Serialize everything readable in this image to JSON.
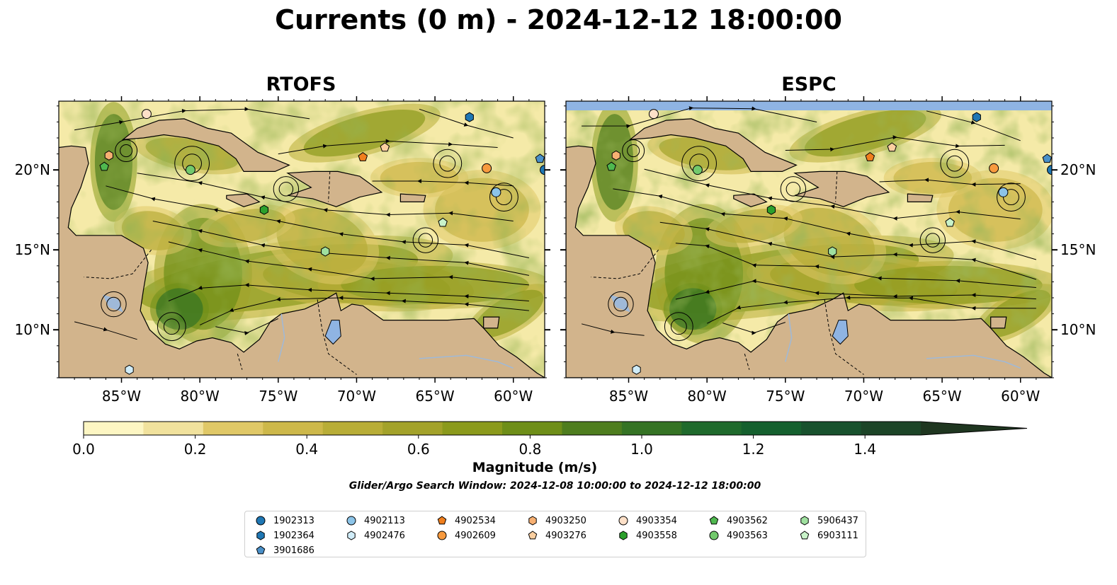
{
  "title": "Currents (0 m) - 2024-12-12 18:00:00",
  "panels": [
    {
      "title": "RTOFS"
    },
    {
      "title": "ESPC"
    }
  ],
  "axes": {
    "lon_range": [
      -89.0,
      -58.0
    ],
    "lat_range": [
      7.0,
      24.3
    ],
    "x_ticks": [
      -85,
      -80,
      -75,
      -70,
      -65,
      -60
    ],
    "x_tick_labels": [
      "85°W",
      "80°W",
      "75°W",
      "70°W",
      "65°W",
      "60°W"
    ],
    "y_ticks": [
      10,
      15,
      20
    ],
    "y_tick_labels": [
      "10°N",
      "15°N",
      "20°N"
    ]
  },
  "colorbar": {
    "label": "Magnitude (m/s)",
    "range": [
      0.0,
      1.5
    ],
    "extend": "max",
    "ticks": [
      0.0,
      0.2,
      0.4,
      0.6,
      0.8,
      1.0,
      1.2,
      1.4
    ],
    "tick_labels": [
      "0.0",
      "0.2",
      "0.4",
      "0.6",
      "0.8",
      "1.0",
      "1.2",
      "1.4"
    ],
    "colors": [
      "#fdf6c3",
      "#f1e29d",
      "#e0c867",
      "#cdb84a",
      "#b8ad37",
      "#a3a22a",
      "#8b9a1c",
      "#6e8e18",
      "#4e7d1e",
      "#357324",
      "#1f6a2c",
      "#15602e",
      "#18512d",
      "#1c4427",
      "#1f3620"
    ]
  },
  "search_window": "Glider/Argo Search Window: 2024-12-08 10:00:00 to 2024-12-12 18:00:00",
  "chart_data": {
    "type": "map",
    "variable": "surface current magnitude and streamlines",
    "depth": "0 m",
    "floats": [
      {
        "id": "1902313",
        "marker": "circle",
        "color": "#1f77b4",
        "lon": -58.0,
        "lat": 20.0
      },
      {
        "id": "1902364",
        "marker": "hexagon",
        "color": "#1f77b4",
        "lon": -62.8,
        "lat": 23.3
      },
      {
        "id": "3901686",
        "marker": "pentagon",
        "color": "#4a90c8",
        "lon": -58.3,
        "lat": 20.7
      },
      {
        "id": "4902113",
        "marker": "circle",
        "color": "#8cc4e8",
        "lon": -61.1,
        "lat": 18.6
      },
      {
        "id": "4902476",
        "marker": "hexagon",
        "color": "#d0ecf8",
        "lon": -84.5,
        "lat": 7.5
      },
      {
        "id": "4902534",
        "marker": "pentagon",
        "color": "#f07f1e",
        "lon": -69.6,
        "lat": 20.8
      },
      {
        "id": "4902609",
        "marker": "circle",
        "color": "#f79a3e",
        "lon": -61.7,
        "lat": 20.1
      },
      {
        "id": "4903250",
        "marker": "hexagon",
        "color": "#f7b072",
        "lon": -85.8,
        "lat": 20.9
      },
      {
        "id": "4903276",
        "marker": "pentagon",
        "color": "#fbcfa0",
        "lon": -68.2,
        "lat": 21.4
      },
      {
        "id": "4903354",
        "marker": "circle",
        "color": "#fde0c8",
        "lon": -83.4,
        "lat": 23.5
      },
      {
        "id": "4903558",
        "marker": "hexagon",
        "color": "#2ca02c",
        "lon": -75.9,
        "lat": 17.5
      },
      {
        "id": "4903562",
        "marker": "pentagon",
        "color": "#4fb84f",
        "lon": -86.1,
        "lat": 20.2
      },
      {
        "id": "4903563",
        "marker": "circle",
        "color": "#72c96c",
        "lon": -80.6,
        "lat": 20.0
      },
      {
        "id": "5906437",
        "marker": "hexagon",
        "color": "#9fe09f",
        "lon": -72.0,
        "lat": 14.9
      },
      {
        "id": "6903111",
        "marker": "pentagon",
        "color": "#c9f3c9",
        "lon": -64.5,
        "lat": 16.7
      }
    ]
  },
  "legend": {
    "entries": [
      {
        "label": "1902313",
        "marker": "circle",
        "color": "#1f77b4"
      },
      {
        "label": "1902364",
        "marker": "hexagon",
        "color": "#1f77b4"
      },
      {
        "label": "3901686",
        "marker": "pentagon",
        "color": "#4a90c8"
      },
      {
        "label": "4902113",
        "marker": "circle",
        "color": "#8cc4e8"
      },
      {
        "label": "4902476",
        "marker": "hexagon",
        "color": "#d0ecf8"
      },
      {
        "label": "4902534",
        "marker": "pentagon",
        "color": "#f07f1e"
      },
      {
        "label": "4902609",
        "marker": "circle",
        "color": "#f79a3e"
      },
      {
        "label": "4903250",
        "marker": "hexagon",
        "color": "#f7b072"
      },
      {
        "label": "4903276",
        "marker": "pentagon",
        "color": "#fbcfa0"
      },
      {
        "label": "4903354",
        "marker": "circle",
        "color": "#fde0c8"
      },
      {
        "label": "4903558",
        "marker": "hexagon",
        "color": "#2ca02c"
      },
      {
        "label": "4903562",
        "marker": "pentagon",
        "color": "#4fb84f"
      },
      {
        "label": "4903563",
        "marker": "circle",
        "color": "#72c96c"
      },
      {
        "label": "5906437",
        "marker": "hexagon",
        "color": "#9fe09f"
      },
      {
        "label": "6903111",
        "marker": "pentagon",
        "color": "#c9f3c9"
      }
    ]
  },
  "colors": {
    "land": "#d2b48c",
    "ocean_empty": "#8fb4e3",
    "streamline": "#000000"
  }
}
